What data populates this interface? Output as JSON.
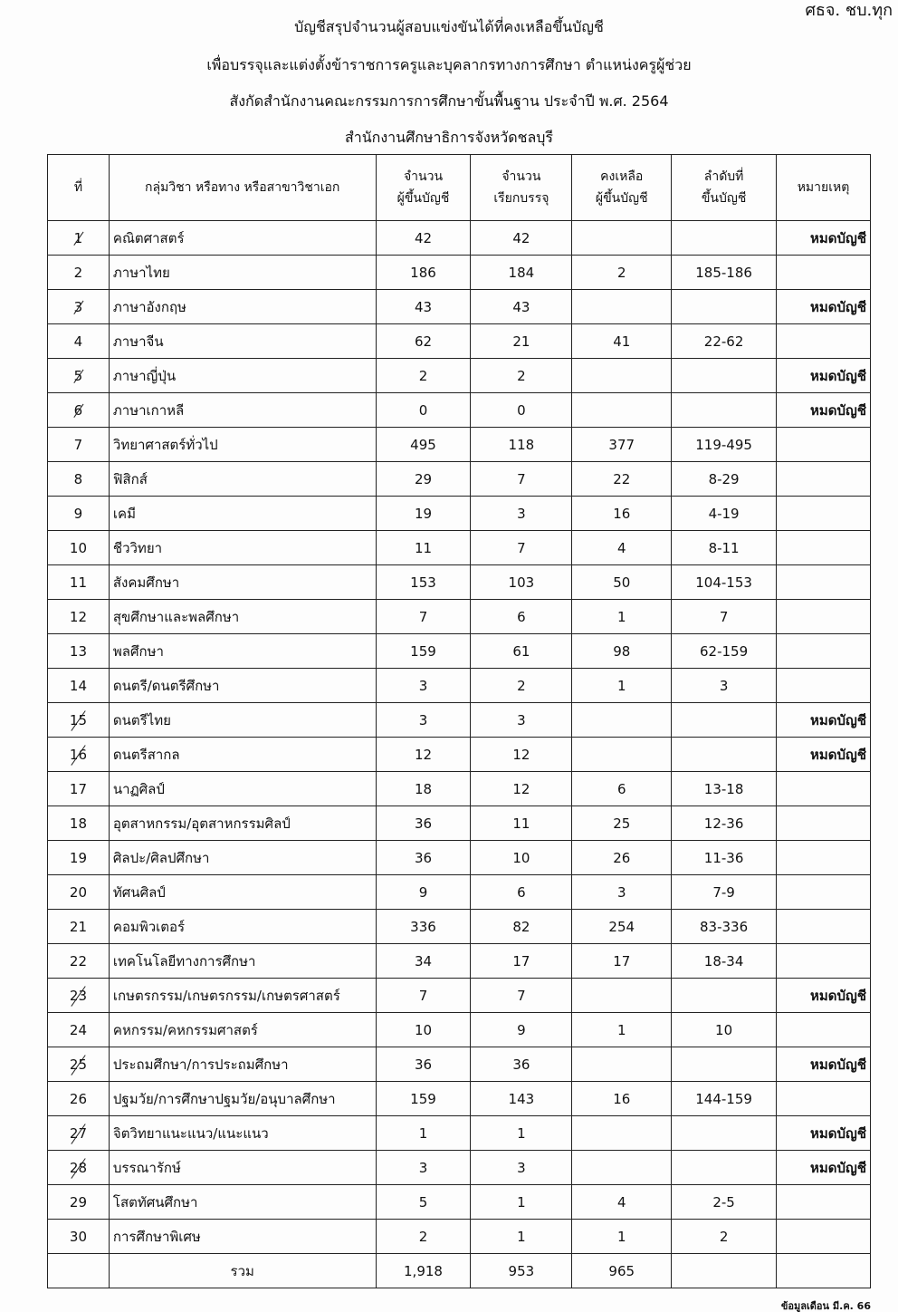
{
  "corner_note": "ศธจ. ชบ.ทุก",
  "titles": [
    "บัญชีสรุปจำนวนผู้สอบแข่งขันได้ที่คงเหลือขึ้นบัญชี",
    "เพื่อบรรจุและแต่งตั้งข้าราชการครูและบุคลากรทางการศึกษา ตำแหน่งครูผู้ช่วย",
    "สังกัดสำนักงานคณะกรรมการการศึกษาขั้นพื้นฐาน ประจำปี  พ.ศ. 2564",
    "สำนักงานศึกษาธิการจังหวัดชลบุรี"
  ],
  "headers": {
    "no": "ที่",
    "subject": "กลุ่มวิชา หรือทาง หรือสาขาวิชาเอก",
    "listed_1": "จำนวน",
    "listed_2": "ผู้ขึ้นบัญชี",
    "called_1": "จำนวน",
    "called_2": "เรียกบรรจุ",
    "remain_1": "คงเหลือ",
    "remain_2": "ผู้ขึ้นบัญชี",
    "rank_1": "ลำดับที่",
    "rank_2": "ขึ้นบัญชี",
    "note": "หมายเหตุ"
  },
  "rows": [
    {
      "no": "1",
      "struck": true,
      "subject": "คณิตศาสตร์",
      "listed": "42",
      "called": "42",
      "remain": "",
      "rank": "",
      "note": "หมดบัญชี"
    },
    {
      "no": "2",
      "struck": false,
      "subject": "ภาษาไทย",
      "listed": "186",
      "called": "184",
      "remain": "2",
      "rank": "185-186",
      "note": ""
    },
    {
      "no": "3",
      "struck": true,
      "subject": "ภาษาอังกฤษ",
      "listed": "43",
      "called": "43",
      "remain": "",
      "rank": "",
      "note": "หมดบัญชี"
    },
    {
      "no": "4",
      "struck": false,
      "subject": "ภาษาจีน",
      "listed": "62",
      "called": "21",
      "remain": "41",
      "rank": "22-62",
      "note": ""
    },
    {
      "no": "5",
      "struck": true,
      "subject": "ภาษาญี่ปุ่น",
      "listed": "2",
      "called": "2",
      "remain": "",
      "rank": "",
      "note": "หมดบัญชี"
    },
    {
      "no": "6",
      "struck": true,
      "subject": "ภาษาเกาหลี",
      "listed": "0",
      "called": "0",
      "remain": "",
      "rank": "",
      "note": "หมดบัญชี"
    },
    {
      "no": "7",
      "struck": false,
      "subject": "วิทยาศาสตร์ทั่วไป",
      "listed": "495",
      "called": "118",
      "remain": "377",
      "rank": "119-495",
      "note": ""
    },
    {
      "no": "8",
      "struck": false,
      "subject": "ฟิสิกส์",
      "listed": "29",
      "called": "7",
      "remain": "22",
      "rank": "8-29",
      "note": ""
    },
    {
      "no": "9",
      "struck": false,
      "subject": "เคมี",
      "listed": "19",
      "called": "3",
      "remain": "16",
      "rank": "4-19",
      "note": ""
    },
    {
      "no": "10",
      "struck": false,
      "subject": "ชีววิทยา",
      "listed": "11",
      "called": "7",
      "remain": "4",
      "rank": "8-11",
      "note": ""
    },
    {
      "no": "11",
      "struck": false,
      "subject": "สังคมศึกษา",
      "listed": "153",
      "called": "103",
      "remain": "50",
      "rank": "104-153",
      "note": ""
    },
    {
      "no": "12",
      "struck": false,
      "subject": "สุขศึกษาและพลศึกษา",
      "listed": "7",
      "called": "6",
      "remain": "1",
      "rank": "7",
      "note": ""
    },
    {
      "no": "13",
      "struck": false,
      "subject": "พลศึกษา",
      "listed": "159",
      "called": "61",
      "remain": "98",
      "rank": "62-159",
      "note": ""
    },
    {
      "no": "14",
      "struck": false,
      "subject": "ดนตรี/ดนตรีศึกษา",
      "listed": "3",
      "called": "2",
      "remain": "1",
      "rank": "3",
      "note": ""
    },
    {
      "no": "15",
      "struck": true,
      "subject": "ดนตรีไทย",
      "listed": "3",
      "called": "3",
      "remain": "",
      "rank": "",
      "note": "หมดบัญชี"
    },
    {
      "no": "16",
      "struck": true,
      "subject": "ดนตรีสากล",
      "listed": "12",
      "called": "12",
      "remain": "",
      "rank": "",
      "note": "หมดบัญชี"
    },
    {
      "no": "17",
      "struck": false,
      "subject": "นาฏศิลป์",
      "listed": "18",
      "called": "12",
      "remain": "6",
      "rank": "13-18",
      "note": ""
    },
    {
      "no": "18",
      "struck": false,
      "subject": "อุตสาหกรรม/อุตสาหกรรมศิลป์",
      "listed": "36",
      "called": "11",
      "remain": "25",
      "rank": "12-36",
      "note": ""
    },
    {
      "no": "19",
      "struck": false,
      "subject": "ศิลปะ/ศิลปศึกษา",
      "listed": "36",
      "called": "10",
      "remain": "26",
      "rank": "11-36",
      "note": ""
    },
    {
      "no": "20",
      "struck": false,
      "subject": "ทัศนศิลป์",
      "listed": "9",
      "called": "6",
      "remain": "3",
      "rank": "7-9",
      "note": ""
    },
    {
      "no": "21",
      "struck": false,
      "subject": "คอมพิวเตอร์",
      "listed": "336",
      "called": "82",
      "remain": "254",
      "rank": "83-336",
      "note": ""
    },
    {
      "no": "22",
      "struck": false,
      "subject": "เทคโนโลยีทางการศึกษา",
      "listed": "34",
      "called": "17",
      "remain": "17",
      "rank": "18-34",
      "note": ""
    },
    {
      "no": "23",
      "struck": true,
      "subject": "เกษตรกรรม/เกษตรกรรม/เกษตรศาสตร์",
      "listed": "7",
      "called": "7",
      "remain": "",
      "rank": "",
      "note": "หมดบัญชี"
    },
    {
      "no": "24",
      "struck": false,
      "subject": "คหกรรม/คหกรรมศาสตร์",
      "listed": "10",
      "called": "9",
      "remain": "1",
      "rank": "10",
      "note": ""
    },
    {
      "no": "25",
      "struck": true,
      "subject": "ประถมศึกษา/การประถมศึกษา",
      "listed": "36",
      "called": "36",
      "remain": "",
      "rank": "",
      "note": "หมดบัญชี"
    },
    {
      "no": "26",
      "struck": false,
      "subject": "ปฐมวัย/การศึกษาปฐมวัย/อนุบาลศึกษา",
      "listed": "159",
      "called": "143",
      "remain": "16",
      "rank": "144-159",
      "note": ""
    },
    {
      "no": "27",
      "struck": true,
      "subject": "จิตวิทยาแนะแนว/แนะแนว",
      "listed": "1",
      "called": "1",
      "remain": "",
      "rank": "",
      "note": "หมดบัญชี"
    },
    {
      "no": "28",
      "struck": true,
      "subject": "บรรณารักษ์",
      "listed": "3",
      "called": "3",
      "remain": "",
      "rank": "",
      "note": "หมดบัญชี"
    },
    {
      "no": "29",
      "struck": false,
      "subject": "โสตทัศนศึกษา",
      "listed": "5",
      "called": "1",
      "remain": "4",
      "rank": "2-5",
      "note": ""
    },
    {
      "no": "30",
      "struck": false,
      "subject": "การศึกษาพิเศษ",
      "listed": "2",
      "called": "1",
      "remain": "1",
      "rank": "2",
      "note": ""
    }
  ],
  "total": {
    "label": "รวม",
    "listed": "1,918",
    "called": "953",
    "remain": "965"
  },
  "footer": "ข้อมูลเดือน มี.ค. 66"
}
